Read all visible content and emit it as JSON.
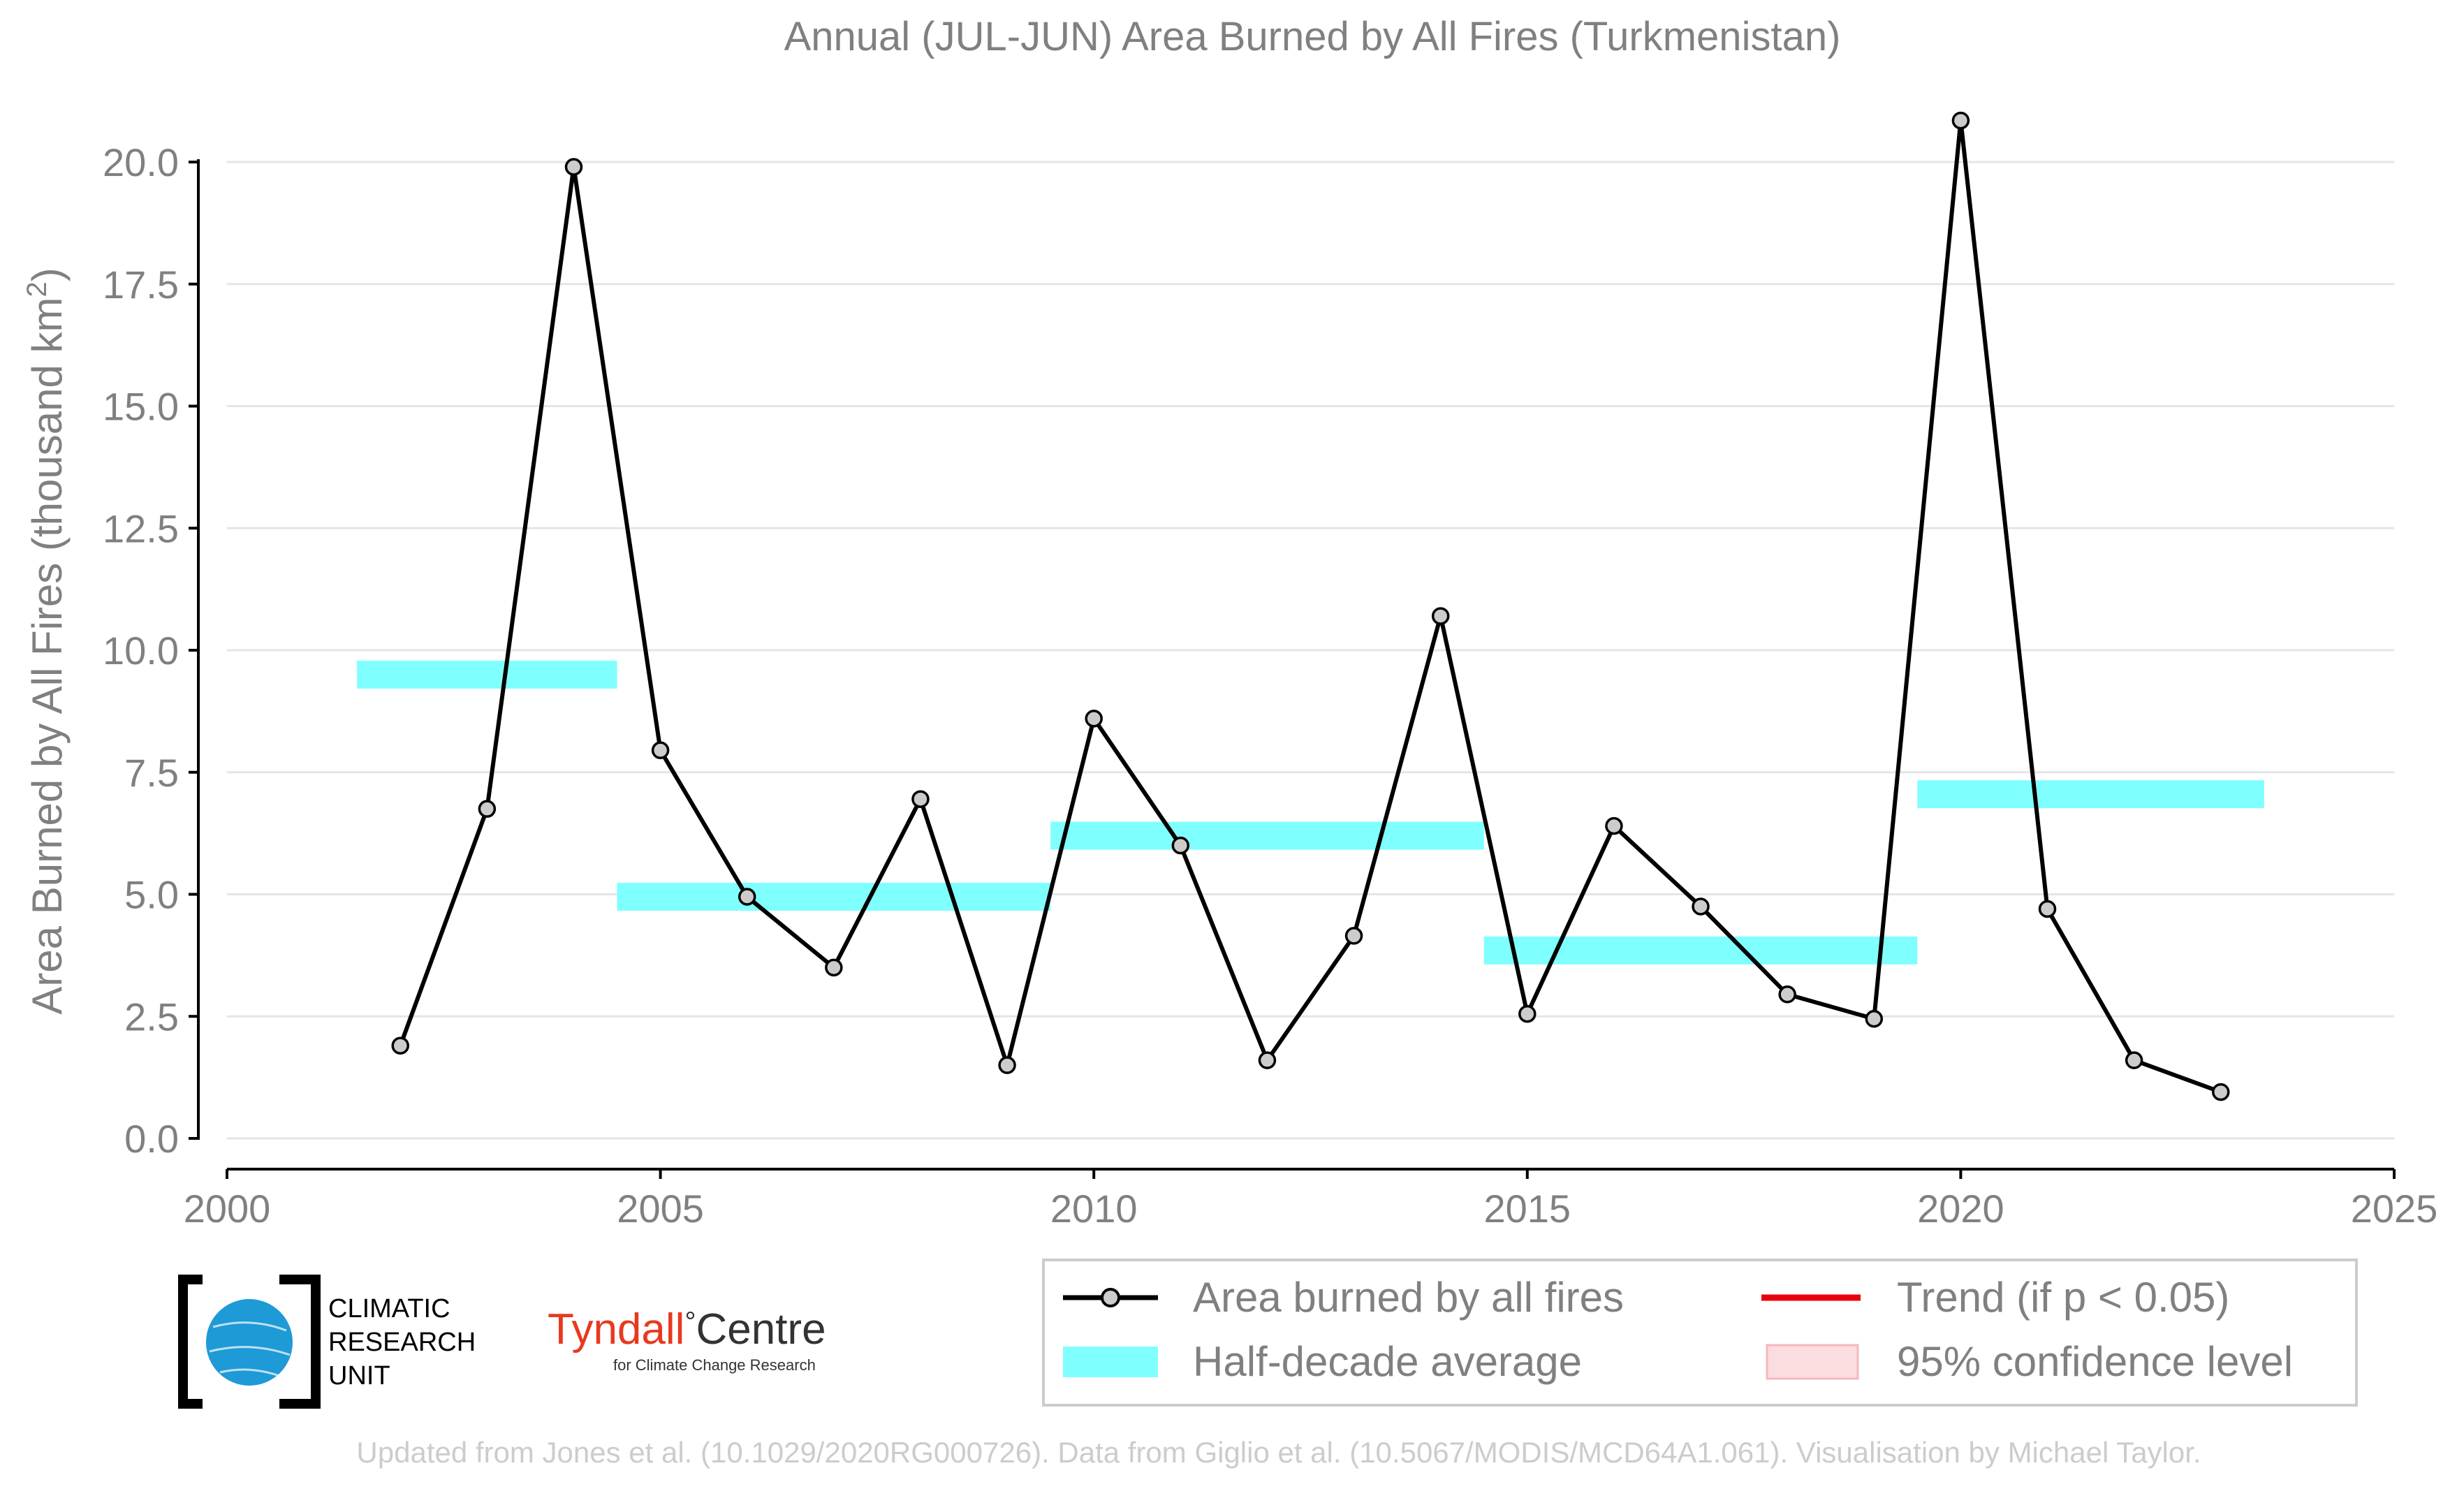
{
  "chart_data": {
    "type": "line",
    "title": "Annual (JUL-JUN) Area Burned by All Fires (Turkmenistan)",
    "xlabel": "",
    "ylabel": "Area Burned by All Fires (thousand km",
    "ylabel_superscript": "2",
    "ylabel_suffix": ")",
    "xlim": [
      2000,
      2025
    ],
    "ylim": [
      0,
      20.8
    ],
    "x_ticks": [
      2000,
      2005,
      2010,
      2015,
      2020,
      2025
    ],
    "x_tick_labels": [
      "2000",
      "2005",
      "2010",
      "2015",
      "2020",
      "2025"
    ],
    "y_ticks": [
      0,
      2.5,
      5,
      7.5,
      10,
      12.5,
      15,
      17.5,
      20
    ],
    "y_tick_labels": [
      "0.0",
      "2.5",
      "5.0",
      "7.5",
      "10.0",
      "12.5",
      "15.0",
      "17.5",
      "20.0"
    ],
    "grid": "horizontal",
    "legend_placement": "bottom-right",
    "series": [
      {
        "name": "Area burned by all fires",
        "color": "#000000",
        "marker_fill": "#cccccc",
        "x": [
          2002,
          2003,
          2004,
          2005,
          2006,
          2007,
          2008,
          2009,
          2010,
          2011,
          2012,
          2013,
          2014,
          2015,
          2016,
          2017,
          2018,
          2019,
          2020,
          2021,
          2022,
          2023
        ],
        "y": [
          1.9,
          6.75,
          19.9,
          7.95,
          4.95,
          3.5,
          6.95,
          1.5,
          8.6,
          6.0,
          1.6,
          4.15,
          10.7,
          2.55,
          6.4,
          4.75,
          2.95,
          2.45,
          20.85,
          4.7,
          1.6,
          0.95
        ]
      },
      {
        "name": "Half-decade average",
        "color": "#80ffff",
        "segments": [
          {
            "x_start": 2001.5,
            "x_end": 2004.5,
            "y": 9.5
          },
          {
            "x_start": 2004.5,
            "x_end": 2009.5,
            "y": 4.95
          },
          {
            "x_start": 2009.5,
            "x_end": 2014.5,
            "y": 6.2
          },
          {
            "x_start": 2014.5,
            "x_end": 2019.5,
            "y": 3.85
          },
          {
            "x_start": 2019.5,
            "x_end": 2023.5,
            "y": 7.05
          }
        ]
      }
    ],
    "legend": [
      {
        "label": "Area burned by all fires",
        "kind": "line-marker",
        "color": "#000000"
      },
      {
        "label": "Trend (if p < 0.05)",
        "kind": "line",
        "color": "#e8000b"
      },
      {
        "label": "Half-decade average",
        "kind": "band",
        "color": "#80ffff"
      },
      {
        "label": "95% confidence level",
        "kind": "band",
        "color": "#fbdcdf"
      }
    ]
  },
  "logos": {
    "cru_lines": [
      "CLIMATIC",
      "RESEARCH",
      "UNIT"
    ],
    "tyndall_name": "Tyndall",
    "tyndall_degree": "°",
    "tyndall_centre": "Centre",
    "tyndall_sub": "for Climate Change Research"
  },
  "footer": {
    "credit": "Updated from Jones et al. (10.1029/2020RG000726). Data from Giglio et al. (10.5067/MODIS/MCD64A1.061). Visualisation by Michael Taylor."
  },
  "colors": {
    "text": "#808080",
    "axis": "#000000",
    "grid": "#e5e5e5",
    "footer": "#cccccc",
    "cru_blue": "#1e9ad6",
    "tyndall_red": "#e8391e"
  }
}
